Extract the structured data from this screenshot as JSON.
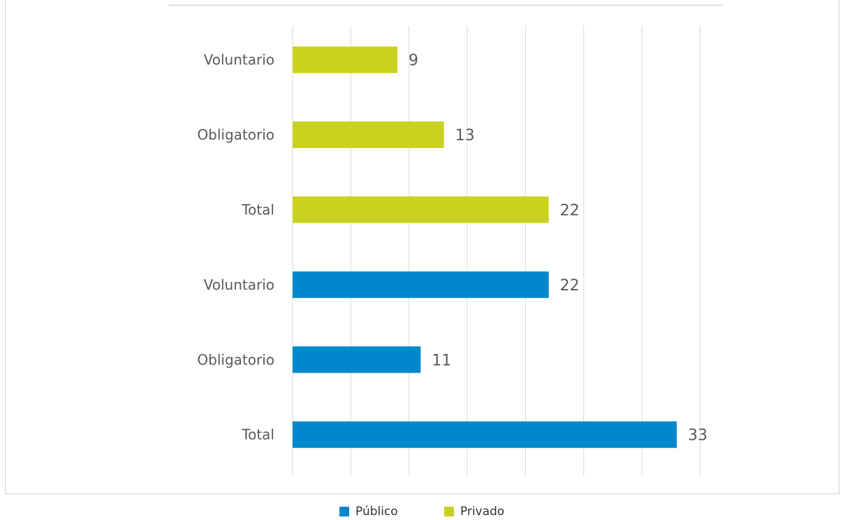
{
  "chart_data": {
    "type": "bar",
    "orientation": "horizontal",
    "title": "",
    "xlabel": "",
    "ylabel": "",
    "xlim": [
      0,
      35
    ],
    "grid": true,
    "legend_position": "bottom",
    "series": [
      {
        "name": "Público",
        "color": "#0088cc"
      },
      {
        "name": "Privado",
        "color": "#c9d21f"
      }
    ],
    "bars": [
      {
        "category": "Voluntario",
        "series": "Privado",
        "value": 9
      },
      {
        "category": "Obligatorio",
        "series": "Privado",
        "value": 13
      },
      {
        "category": "Total",
        "series": "Privado",
        "value": 22
      },
      {
        "category": "Voluntario",
        "series": "Público",
        "value": 22
      },
      {
        "category": "Obligatorio",
        "series": "Público",
        "value": 11
      },
      {
        "category": "Total",
        "series": "Público",
        "value": 33
      }
    ]
  }
}
